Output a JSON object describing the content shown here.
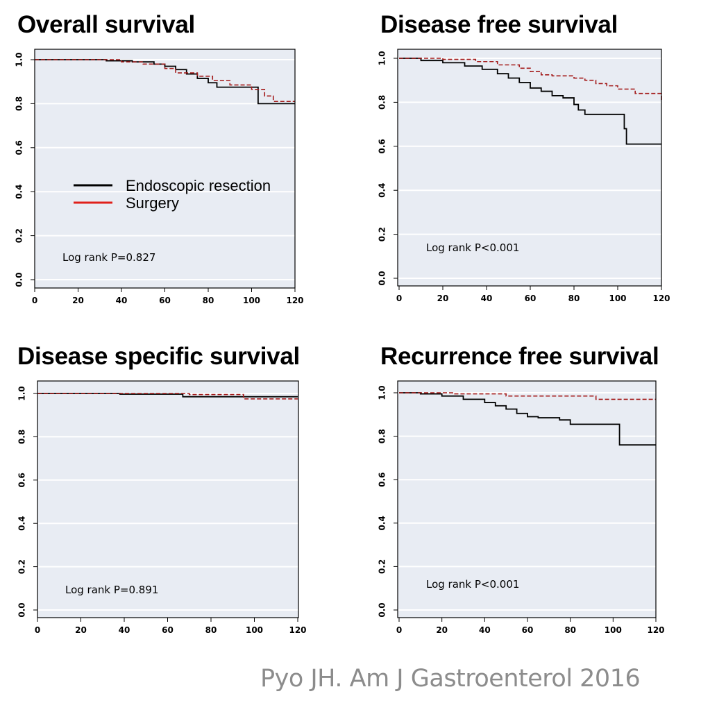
{
  "citation": "Pyo JH. Am J Gastroenterol 2016",
  "colors": {
    "plot_bg": "#e8ecf3",
    "grid": "#ffffff",
    "endoscopic": "#000000",
    "surgery": "#a31a1a",
    "legend_surgery": "#e0201a"
  },
  "legend": {
    "placement": "inside overall survival panel, left-center",
    "entries": [
      {
        "label": "Endoscopic resection",
        "color": "#000000"
      },
      {
        "label": "Surgery",
        "color": "#e0201a"
      }
    ]
  },
  "chart_data": [
    {
      "type": "line",
      "title": "Overall survival",
      "xlim": [
        0,
        120
      ],
      "ylim": [
        0,
        1
      ],
      "xticks": [
        "0",
        "20",
        "40",
        "60",
        "80",
        "100",
        "120"
      ],
      "yticks": [
        "0.0",
        "0.2",
        "0.4",
        "0.6",
        "0.8",
        "1.0"
      ],
      "grid": true,
      "annotation": "Log rank P=0.827",
      "series": [
        {
          "name": "Endoscopic resection",
          "style": "solid",
          "x": [
            0,
            33,
            45,
            55,
            60,
            65,
            70,
            75,
            80,
            84,
            95,
            103,
            120
          ],
          "y": [
            1.0,
            0.995,
            0.99,
            0.98,
            0.97,
            0.955,
            0.935,
            0.915,
            0.895,
            0.875,
            0.875,
            0.8,
            0.8
          ]
        },
        {
          "name": "Surgery",
          "style": "dashed",
          "x": [
            0,
            40,
            50,
            60,
            65,
            75,
            82,
            90,
            100,
            106,
            110,
            120
          ],
          "y": [
            1.0,
            0.99,
            0.98,
            0.96,
            0.94,
            0.925,
            0.905,
            0.885,
            0.865,
            0.835,
            0.81,
            0.81
          ]
        }
      ]
    },
    {
      "type": "line",
      "title": "Disease free survival",
      "xlim": [
        0,
        120
      ],
      "ylim": [
        0,
        1
      ],
      "xticks": [
        "0",
        "20",
        "40",
        "60",
        "80",
        "100",
        "120"
      ],
      "yticks": [
        "0.0",
        "0.2",
        "0.4",
        "0.6",
        "0.8",
        "1.0"
      ],
      "grid": true,
      "annotation": "Log rank P<0.001",
      "series": [
        {
          "name": "Endoscopic resection",
          "style": "solid",
          "x": [
            0,
            10,
            20,
            30,
            38,
            45,
            50,
            55,
            60,
            65,
            70,
            75,
            80,
            82,
            85,
            95,
            103,
            104,
            120
          ],
          "y": [
            1.0,
            0.99,
            0.98,
            0.965,
            0.95,
            0.93,
            0.91,
            0.89,
            0.865,
            0.85,
            0.83,
            0.82,
            0.79,
            0.765,
            0.745,
            0.745,
            0.68,
            0.61,
            0.61
          ]
        },
        {
          "name": "Surgery",
          "style": "dashed",
          "x": [
            0,
            20,
            35,
            45,
            55,
            60,
            65,
            70,
            80,
            85,
            90,
            95,
            100,
            108,
            120
          ],
          "y": [
            1.0,
            0.995,
            0.985,
            0.97,
            0.955,
            0.94,
            0.925,
            0.92,
            0.91,
            0.9,
            0.885,
            0.875,
            0.86,
            0.84,
            0.81
          ]
        }
      ]
    },
    {
      "type": "line",
      "title": "Disease specific survival",
      "xlim": [
        0,
        120
      ],
      "ylim": [
        0,
        1
      ],
      "xticks": [
        "0",
        "20",
        "40",
        "60",
        "80",
        "100",
        "120"
      ],
      "yticks": [
        "0.0",
        "0.2",
        "0.4",
        "0.6",
        "0.8",
        "1.0"
      ],
      "grid": true,
      "annotation": "Log rank P=0.891",
      "series": [
        {
          "name": "Endoscopic resection",
          "style": "solid",
          "x": [
            0,
            38,
            67,
            120
          ],
          "y": [
            1.0,
            0.997,
            0.985,
            0.985
          ]
        },
        {
          "name": "Surgery",
          "style": "dashed",
          "x": [
            0,
            70,
            95,
            120
          ],
          "y": [
            1.0,
            0.995,
            0.975,
            0.975
          ]
        }
      ]
    },
    {
      "type": "line",
      "title": "Recurrence free survival",
      "xlim": [
        0,
        120
      ],
      "ylim": [
        0,
        1
      ],
      "xticks": [
        "0",
        "20",
        "40",
        "60",
        "80",
        "100",
        "120"
      ],
      "yticks": [
        "0.0",
        "0.2",
        "0.4",
        "0.6",
        "0.8",
        "1.0"
      ],
      "grid": true,
      "annotation": "Log rank P<0.001",
      "series": [
        {
          "name": "Endoscopic resection",
          "style": "solid",
          "x": [
            0,
            10,
            20,
            30,
            40,
            45,
            50,
            55,
            60,
            65,
            75,
            80,
            95,
            103,
            120
          ],
          "y": [
            1.0,
            0.995,
            0.985,
            0.97,
            0.955,
            0.94,
            0.925,
            0.905,
            0.89,
            0.885,
            0.875,
            0.855,
            0.855,
            0.76,
            0.76
          ]
        },
        {
          "name": "Surgery",
          "style": "dashed",
          "x": [
            0,
            25,
            50,
            92,
            120
          ],
          "y": [
            1.0,
            0.995,
            0.985,
            0.97,
            0.97
          ]
        }
      ]
    }
  ]
}
